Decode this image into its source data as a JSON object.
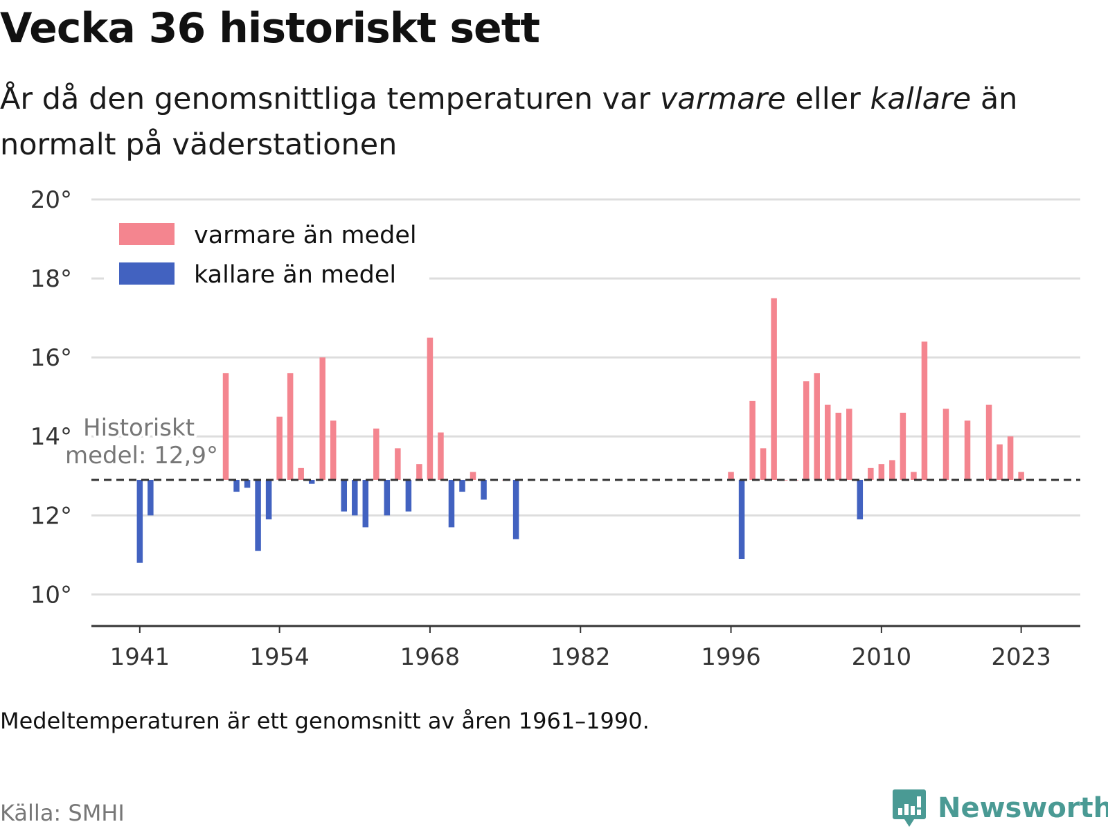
{
  "title": "Vecka 36 historiskt sett",
  "subtitle": {
    "part1": "År då den genomsnittliga temperaturen var ",
    "em1": "varmare",
    "part2": " eller ",
    "em2": "kallare",
    "part3": " än normalt på väderstationen"
  },
  "note": "Medeltemperaturen är ett genomsnitt av åren 1961–1990.",
  "source": "Källa: SMHI",
  "brand": {
    "name": "Newsworthy",
    "icon": "newsworthy-logo-icon"
  },
  "colors": {
    "warm": "#f4858f",
    "cold": "#4262c0",
    "grid": "#dddddd",
    "baseline": "#333333",
    "annotation": "#777777"
  },
  "chart_data": {
    "type": "bar",
    "xlabel": "",
    "ylabel": "",
    "ylim": [
      9.2,
      20
    ],
    "xlim": [
      1936.5,
      2028.5
    ],
    "yticks": [
      10,
      12,
      14,
      16,
      18,
      20
    ],
    "ytick_labels": [
      "10°",
      "12°",
      "14°",
      "16°",
      "18°",
      "20°"
    ],
    "xticks": [
      1941,
      1954,
      1968,
      1982,
      1996,
      2010,
      2023
    ],
    "xtick_labels": [
      "1941",
      "1954",
      "1968",
      "1982",
      "1996",
      "2010",
      "2023"
    ],
    "baseline": 12.9,
    "baseline_label": [
      "Historiskt",
      "medel: 12,9°"
    ],
    "grid": true,
    "legend_position": "top-left",
    "legend": [
      {
        "label": "varmare än medel",
        "color": "#f4858f"
      },
      {
        "label": "kallare än medel",
        "color": "#4262c0"
      }
    ],
    "x": [
      1941,
      1942,
      1949,
      1950,
      1951,
      1952,
      1953,
      1954,
      1955,
      1956,
      1957,
      1958,
      1959,
      1960,
      1961,
      1962,
      1963,
      1964,
      1965,
      1966,
      1967,
      1968,
      1969,
      1970,
      1971,
      1972,
      1973,
      1974,
      1975,
      1976,
      1996,
      1997,
      1998,
      1999,
      2000,
      2001,
      2002,
      2003,
      2004,
      2005,
      2006,
      2007,
      2008,
      2009,
      2010,
      2011,
      2012,
      2013,
      2014,
      2016,
      2018,
      2020,
      2021,
      2022,
      2023
    ],
    "values": [
      10.8,
      12.0,
      15.6,
      12.6,
      12.7,
      11.1,
      11.9,
      14.5,
      15.6,
      13.2,
      12.8,
      16.0,
      14.4,
      12.1,
      12.0,
      11.7,
      14.2,
      12.0,
      13.7,
      12.1,
      13.3,
      16.5,
      14.1,
      11.7,
      12.6,
      13.1,
      12.4,
      12.9,
      12.9,
      11.4,
      13.1,
      10.9,
      14.9,
      13.7,
      17.5,
      12.9,
      12.9,
      15.4,
      15.6,
      14.8,
      14.6,
      14.7,
      11.9,
      13.2,
      13.3,
      13.4,
      14.6,
      13.1,
      16.4,
      14.7,
      14.4,
      14.8,
      13.8,
      14.0,
      13.1
    ]
  }
}
